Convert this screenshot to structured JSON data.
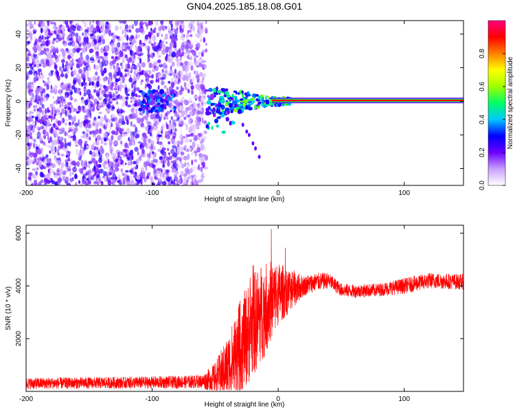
{
  "title": "GN04.2025.185.18.08.G01",
  "chart_data": [
    {
      "type": "heatmap",
      "xlabel": "Height of straight line (km)",
      "ylabel": "Frequency (Hz)",
      "xlim": [
        -200,
        147
      ],
      "ylim": [
        -50,
        48
      ],
      "xticks": [
        -200,
        -100,
        0,
        100
      ],
      "yticks": [
        -40,
        -20,
        0,
        20,
        40
      ],
      "colorbar": {
        "label": "Normalized spectral amplitude",
        "range": [
          0,
          1
        ],
        "ticks": [
          "0.0",
          "0.2",
          "0.4",
          "0.6",
          "0.8"
        ],
        "tick_values": [
          0,
          0.2,
          0.4,
          0.6,
          0.8
        ],
        "colormap": [
          "#ffffff",
          "#c9a0ff",
          "#6a00ff",
          "#0000ff",
          "#00c8ff",
          "#00ff66",
          "#a0ff00",
          "#ffff00",
          "#ff8000",
          "#ff0000",
          "#ff0080"
        ]
      },
      "features": {
        "noise_region_x": [
          -200,
          -57
        ],
        "tone_line": {
          "x": [
            -5,
            147
          ],
          "frequency": 0.5,
          "amplitude": 0.9
        },
        "transition_region_x": [
          -57,
          10
        ]
      }
    },
    {
      "type": "line",
      "xlabel": "Height of straight line (km)",
      "ylabel": "SNR (10 * v/v)",
      "xlim": [
        -200,
        147
      ],
      "ylim": [
        0,
        6300
      ],
      "xticks": [
        -200,
        -100,
        0,
        100
      ],
      "yticks": [
        2000,
        4000,
        6000
      ],
      "series": [
        {
          "color": "#ff0000",
          "envelope": {
            "x": [
              -200,
              -150,
              -100,
              -80,
              -60,
              -50,
              -40,
              -30,
              -20,
              -10,
              0,
              10,
              20,
              30,
              40,
              50,
              60,
              80,
              100,
              120,
              147
            ],
            "mean": [
              300,
              320,
              340,
              350,
              380,
              500,
              900,
              1700,
              2500,
              3200,
              3700,
              3850,
              4000,
              4150,
              4200,
              3850,
              3800,
              3850,
              4000,
              4200,
              4150
            ],
            "spread": [
              220,
              220,
              230,
              240,
              260,
              600,
              1200,
              1800,
              2000,
              1800,
              1200,
              800,
              400,
              350,
              300,
              250,
              250,
              250,
              300,
              300,
              300
            ]
          }
        }
      ]
    }
  ]
}
